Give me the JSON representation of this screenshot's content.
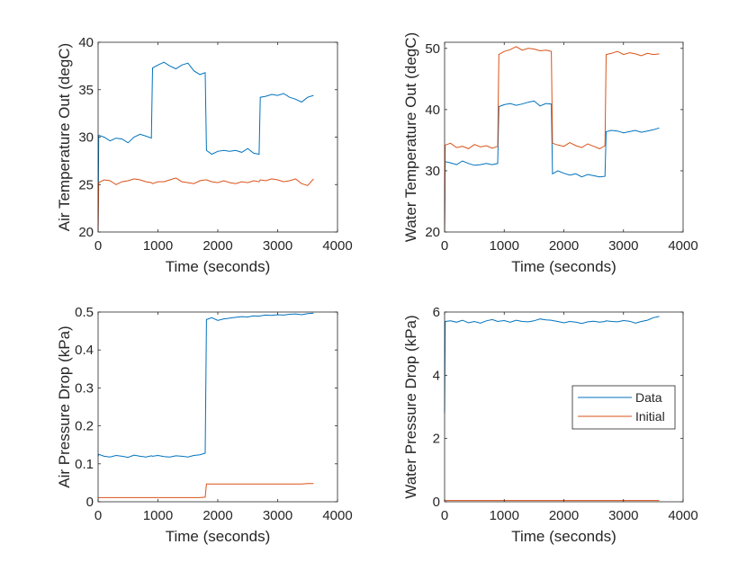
{
  "colors": {
    "data": "#0072BD",
    "initial": "#D95319",
    "axis": "#262626"
  },
  "chart_data": [
    {
      "type": "line",
      "xlabel": "Time (seconds)",
      "ylabel": "Air Temperature Out (degC)",
      "xlim": [
        0,
        4000
      ],
      "ylim": [
        20,
        40
      ],
      "xticks": [
        0,
        1000,
        2000,
        3000,
        4000
      ],
      "yticks": [
        20,
        25,
        30,
        35,
        40
      ],
      "grid": false,
      "legend": null,
      "x": [
        0,
        10,
        100,
        200,
        300,
        400,
        500,
        600,
        700,
        800,
        890,
        910,
        1000,
        1100,
        1200,
        1300,
        1400,
        1500,
        1600,
        1700,
        1790,
        1810,
        1900,
        2000,
        2100,
        2200,
        2300,
        2400,
        2500,
        2600,
        2690,
        2710,
        2800,
        2900,
        3000,
        3100,
        3200,
        3300,
        3400,
        3500,
        3600
      ],
      "series": [
        {
          "key": "data",
          "values": [
            20,
            30.2,
            30.0,
            29.6,
            29.9,
            29.8,
            29.4,
            30.0,
            30.3,
            30.1,
            29.9,
            37.3,
            37.6,
            37.9,
            37.5,
            37.2,
            37.6,
            37.8,
            37.0,
            36.6,
            36.8,
            28.6,
            28.2,
            28.5,
            28.6,
            28.5,
            28.6,
            28.4,
            28.8,
            28.3,
            28.2,
            34.2,
            34.3,
            34.5,
            34.4,
            34.6,
            34.2,
            34.0,
            33.7,
            34.2,
            34.4
          ]
        },
        {
          "key": "initial",
          "values": [
            20,
            25.2,
            25.5,
            25.4,
            25.0,
            25.3,
            25.4,
            25.6,
            25.5,
            25.3,
            25.2,
            25.1,
            25.3,
            25.3,
            25.5,
            25.7,
            25.3,
            25.2,
            25.1,
            25.4,
            25.5,
            25.5,
            25.3,
            25.2,
            25.4,
            25.2,
            25.1,
            25.3,
            25.2,
            25.4,
            25.3,
            25.5,
            25.4,
            25.6,
            25.5,
            25.3,
            25.4,
            25.6,
            25.1,
            24.9,
            25.6
          ]
        }
      ]
    },
    {
      "type": "line",
      "xlabel": "Time (seconds)",
      "ylabel": "Water Temperature Out (degC)",
      "xlim": [
        0,
        4000
      ],
      "ylim": [
        20,
        51
      ],
      "xticks": [
        0,
        1000,
        2000,
        3000,
        4000
      ],
      "yticks": [
        20,
        30,
        40,
        50
      ],
      "grid": false,
      "legend": null,
      "x": [
        0,
        10,
        100,
        200,
        300,
        400,
        500,
        600,
        700,
        800,
        890,
        910,
        1000,
        1100,
        1200,
        1300,
        1400,
        1500,
        1600,
        1700,
        1790,
        1810,
        1900,
        2000,
        2100,
        2200,
        2300,
        2400,
        2500,
        2600,
        2690,
        2710,
        2800,
        2900,
        3000,
        3100,
        3200,
        3300,
        3400,
        3500,
        3600
      ],
      "series": [
        {
          "key": "data",
          "values": [
            20,
            31.5,
            31.3,
            31.0,
            31.6,
            31.2,
            30.9,
            31.0,
            31.2,
            31.0,
            31.2,
            40.5,
            40.8,
            41.0,
            40.7,
            40.9,
            41.2,
            41.4,
            40.6,
            41.0,
            40.9,
            29.5,
            30.0,
            29.6,
            29.3,
            29.5,
            29.0,
            29.4,
            29.2,
            29.0,
            29.1,
            36.4,
            36.6,
            36.5,
            36.2,
            36.4,
            36.6,
            36.3,
            36.5,
            36.7,
            37.0
          ]
        },
        {
          "key": "initial",
          "values": [
            20,
            34.2,
            34.5,
            33.8,
            34.0,
            33.6,
            34.3,
            33.9,
            34.1,
            33.7,
            34.0,
            49.0,
            49.5,
            49.8,
            50.3,
            49.7,
            50.0,
            49.9,
            49.6,
            49.7,
            49.5,
            34.5,
            34.2,
            34.0,
            34.6,
            34.1,
            33.8,
            34.4,
            34.0,
            33.6,
            34.1,
            49.0,
            49.2,
            49.5,
            49.0,
            49.3,
            49.1,
            48.8,
            49.2,
            49.0,
            49.1
          ]
        }
      ]
    },
    {
      "type": "line",
      "xlabel": "Time (seconds)",
      "ylabel": "Air Pressure Drop (kPa)",
      "xlim": [
        0,
        4000
      ],
      "ylim": [
        0,
        0.5
      ],
      "xticks": [
        0,
        1000,
        2000,
        3000,
        4000
      ],
      "yticks": [
        0,
        0.1,
        0.2,
        0.3,
        0.4,
        0.5
      ],
      "grid": false,
      "legend": null,
      "x": [
        0,
        10,
        100,
        200,
        300,
        400,
        500,
        600,
        700,
        800,
        890,
        910,
        1000,
        1100,
        1200,
        1300,
        1400,
        1500,
        1600,
        1700,
        1790,
        1810,
        1900,
        2000,
        2100,
        2200,
        2300,
        2400,
        2500,
        2600,
        2690,
        2710,
        2800,
        2900,
        3000,
        3100,
        3200,
        3300,
        3400,
        3500,
        3600
      ],
      "series": [
        {
          "key": "data",
          "values": [
            0.12,
            0.125,
            0.12,
            0.118,
            0.122,
            0.12,
            0.117,
            0.123,
            0.12,
            0.118,
            0.121,
            0.12,
            0.122,
            0.119,
            0.118,
            0.121,
            0.12,
            0.118,
            0.122,
            0.124,
            0.128,
            0.48,
            0.485,
            0.478,
            0.482,
            0.484,
            0.486,
            0.488,
            0.487,
            0.49,
            0.489,
            0.49,
            0.492,
            0.491,
            0.493,
            0.492,
            0.494,
            0.495,
            0.493,
            0.496,
            0.497
          ]
        },
        {
          "key": "initial",
          "values": [
            0.01,
            0.011,
            0.011,
            0.011,
            0.011,
            0.011,
            0.011,
            0.011,
            0.011,
            0.011,
            0.011,
            0.011,
            0.011,
            0.011,
            0.011,
            0.011,
            0.011,
            0.011,
            0.011,
            0.011,
            0.012,
            0.047,
            0.047,
            0.047,
            0.047,
            0.047,
            0.047,
            0.047,
            0.047,
            0.047,
            0.047,
            0.047,
            0.047,
            0.047,
            0.047,
            0.047,
            0.047,
            0.047,
            0.047,
            0.048,
            0.048
          ]
        }
      ]
    },
    {
      "type": "line",
      "xlabel": "Time (seconds)",
      "ylabel": "Water Pressure Drop (kPa)",
      "xlim": [
        0,
        4000
      ],
      "ylim": [
        0,
        6
      ],
      "xticks": [
        0,
        1000,
        2000,
        3000,
        4000
      ],
      "yticks": [
        0,
        2,
        4,
        6
      ],
      "grid": false,
      "legend": "right",
      "x": [
        0,
        10,
        100,
        200,
        300,
        400,
        500,
        600,
        700,
        800,
        890,
        910,
        1000,
        1100,
        1200,
        1300,
        1400,
        1500,
        1600,
        1700,
        1790,
        1810,
        1900,
        2000,
        2100,
        2200,
        2300,
        2400,
        2500,
        2600,
        2690,
        2710,
        2800,
        2900,
        3000,
        3100,
        3200,
        3300,
        3400,
        3500,
        3600
      ],
      "series": [
        {
          "key": "data",
          "name": "Data",
          "values": [
            2.8,
            5.7,
            5.72,
            5.68,
            5.74,
            5.66,
            5.7,
            5.65,
            5.72,
            5.76,
            5.7,
            5.71,
            5.73,
            5.68,
            5.74,
            5.7,
            5.69,
            5.72,
            5.78,
            5.75,
            5.74,
            5.73,
            5.7,
            5.66,
            5.7,
            5.68,
            5.64,
            5.69,
            5.71,
            5.68,
            5.7,
            5.72,
            5.7,
            5.69,
            5.73,
            5.71,
            5.65,
            5.7,
            5.74,
            5.82,
            5.86
          ]
        },
        {
          "key": "initial",
          "name": "Initial",
          "values": [
            0.04,
            0.04,
            0.04,
            0.04,
            0.04,
            0.04,
            0.04,
            0.04,
            0.04,
            0.04,
            0.04,
            0.04,
            0.04,
            0.04,
            0.04,
            0.04,
            0.04,
            0.04,
            0.04,
            0.04,
            0.04,
            0.04,
            0.04,
            0.04,
            0.04,
            0.04,
            0.04,
            0.04,
            0.04,
            0.04,
            0.04,
            0.04,
            0.04,
            0.04,
            0.04,
            0.04,
            0.04,
            0.04,
            0.04,
            0.04,
            0.04
          ]
        }
      ]
    }
  ]
}
